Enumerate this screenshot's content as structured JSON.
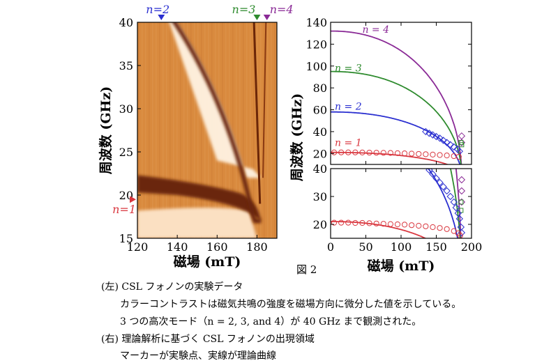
{
  "figure_label": "図 2",
  "captions": {
    "left_title": "(左) CSL フォノンの実験データ",
    "left_line1": "カラーコントラストは磁気共鳴の強度を磁場方向に微分した値を示している。",
    "left_line2": "3 つの高次モード（n = 2, 3, and 4）が 40 GHz まで観測された。",
    "right_title": "(右) 理論解析に基づく CSL フォノンの出現領域",
    "right_line1": "マーカーが実験点、実線が理論曲線"
  },
  "colors": {
    "n1": "#d9373f",
    "n2": "#2a2fd0",
    "n3": "#2e8b2e",
    "n4": "#8a2a96",
    "heatmap_bg": "#d98a3e",
    "heatmap_dark": "#6b2608",
    "heatmap_light": "#fff3e2"
  },
  "chart_data": [
    {
      "type": "heatmap",
      "xlabel": "磁場 (mT)",
      "ylabel": "周波数 (GHz)",
      "xlim": [
        120,
        190
      ],
      "ylim": [
        15,
        40
      ],
      "xticks": [
        120,
        140,
        160,
        180
      ],
      "yticks": [
        15,
        20,
        25,
        30,
        35,
        40
      ],
      "markers": [
        {
          "label": "n=2",
          "x": 132,
          "color_key": "n2"
        },
        {
          "label": "n=3",
          "x": 180,
          "color_key": "n3"
        },
        {
          "label": "n=4",
          "x": 185,
          "color_key": "n4"
        }
      ],
      "side_marker": {
        "label": "n=1",
        "y": 19.5,
        "color_key": "n1"
      }
    },
    {
      "type": "line",
      "panel": "upper",
      "xlim": [
        0,
        200
      ],
      "ylim": [
        10,
        140
      ],
      "yticks": [
        20,
        40,
        60,
        80,
        100,
        120,
        140
      ],
      "series": [
        {
          "name": "n = 4",
          "f0": 132,
          "bc": 186,
          "color_key": "n4",
          "markers": [
            [
              186,
              36
            ],
            [
              186,
              30
            ]
          ]
        },
        {
          "name": "n = 3",
          "f0": 95,
          "bc": 186,
          "color_key": "n3",
          "markers": [
            [
              185,
              30
            ],
            [
              186,
              28
            ]
          ]
        },
        {
          "name": "n = 2",
          "f0": 58,
          "bc": 186,
          "color_key": "n2",
          "markers": [
            [
              135,
              40
            ],
            [
              140,
              38.5
            ],
            [
              145,
              37
            ],
            [
              150,
              35.5
            ],
            [
              155,
              34
            ],
            [
              160,
              32
            ],
            [
              165,
              30
            ],
            [
              170,
              28
            ],
            [
              175,
              26
            ],
            [
              180,
              24
            ],
            [
              183,
              22
            ]
          ]
        },
        {
          "name": "n = 1",
          "f0": 21,
          "bc": 186,
          "color_key": "n1",
          "markers": [
            [
              5,
              21
            ],
            [
              15,
              21
            ],
            [
              25,
              21
            ],
            [
              35,
              21
            ],
            [
              45,
              20.9
            ],
            [
              55,
              20.8
            ],
            [
              65,
              20.7
            ],
            [
              75,
              20.6
            ],
            [
              85,
              20.5
            ],
            [
              95,
              20.3
            ],
            [
              105,
              20.1
            ],
            [
              115,
              19.9
            ],
            [
              125,
              19.6
            ],
            [
              135,
              19.3
            ],
            [
              145,
              19
            ],
            [
              155,
              18.6
            ],
            [
              165,
              18.2
            ],
            [
              175,
              17.6
            ],
            [
              182,
              17
            ]
          ]
        }
      ]
    },
    {
      "type": "line",
      "panel": "lower",
      "xlabel": "磁場 (mT)",
      "ylabel": "周波数 (GHz)",
      "xlim": [
        0,
        200
      ],
      "ylim": [
        15,
        40
      ],
      "xticks": [
        0,
        50,
        100,
        150,
        200
      ],
      "yticks": [
        20,
        30,
        40
      ],
      "series": [
        {
          "name": "n = 4",
          "f0": 132,
          "bc": 186,
          "color_key": "n4",
          "markers": [
            [
              186,
              36
            ],
            [
              186,
              32
            ],
            [
              186,
              28
            ]
          ]
        },
        {
          "name": "n = 3",
          "f0": 95,
          "bc": 186,
          "color_key": "n3",
          "markers": [
            [
              185,
              28
            ],
            [
              185,
              25
            ]
          ]
        },
        {
          "name": "n = 2",
          "f0": 58,
          "bc": 186,
          "color_key": "n2",
          "markers": [
            [
              140,
              39.5
            ],
            [
              145,
              38
            ],
            [
              150,
              36.5
            ],
            [
              155,
              35
            ],
            [
              160,
              33.5
            ],
            [
              165,
              32
            ],
            [
              170,
              30
            ],
            [
              175,
              28
            ],
            [
              178,
              26
            ],
            [
              181,
              24
            ],
            [
              183,
              22
            ],
            [
              185,
              19
            ],
            [
              186,
              17
            ]
          ]
        },
        {
          "name": "n = 1",
          "f0": 21,
          "bc": 186,
          "color_key": "n1",
          "markers": [
            [
              5,
              20.6
            ],
            [
              15,
              20.6
            ],
            [
              25,
              20.6
            ],
            [
              35,
              20.5
            ],
            [
              45,
              20.5
            ],
            [
              55,
              20.4
            ],
            [
              65,
              20.3
            ],
            [
              75,
              20.2
            ],
            [
              85,
              20.1
            ],
            [
              95,
              20
            ],
            [
              105,
              19.9
            ],
            [
              115,
              19.7
            ],
            [
              125,
              19.5
            ],
            [
              135,
              19.3
            ],
            [
              145,
              19
            ],
            [
              155,
              18.7
            ],
            [
              165,
              18.3
            ],
            [
              175,
              17.6
            ],
            [
              181,
              16.8
            ],
            [
              184,
              16
            ]
          ]
        }
      ]
    }
  ]
}
